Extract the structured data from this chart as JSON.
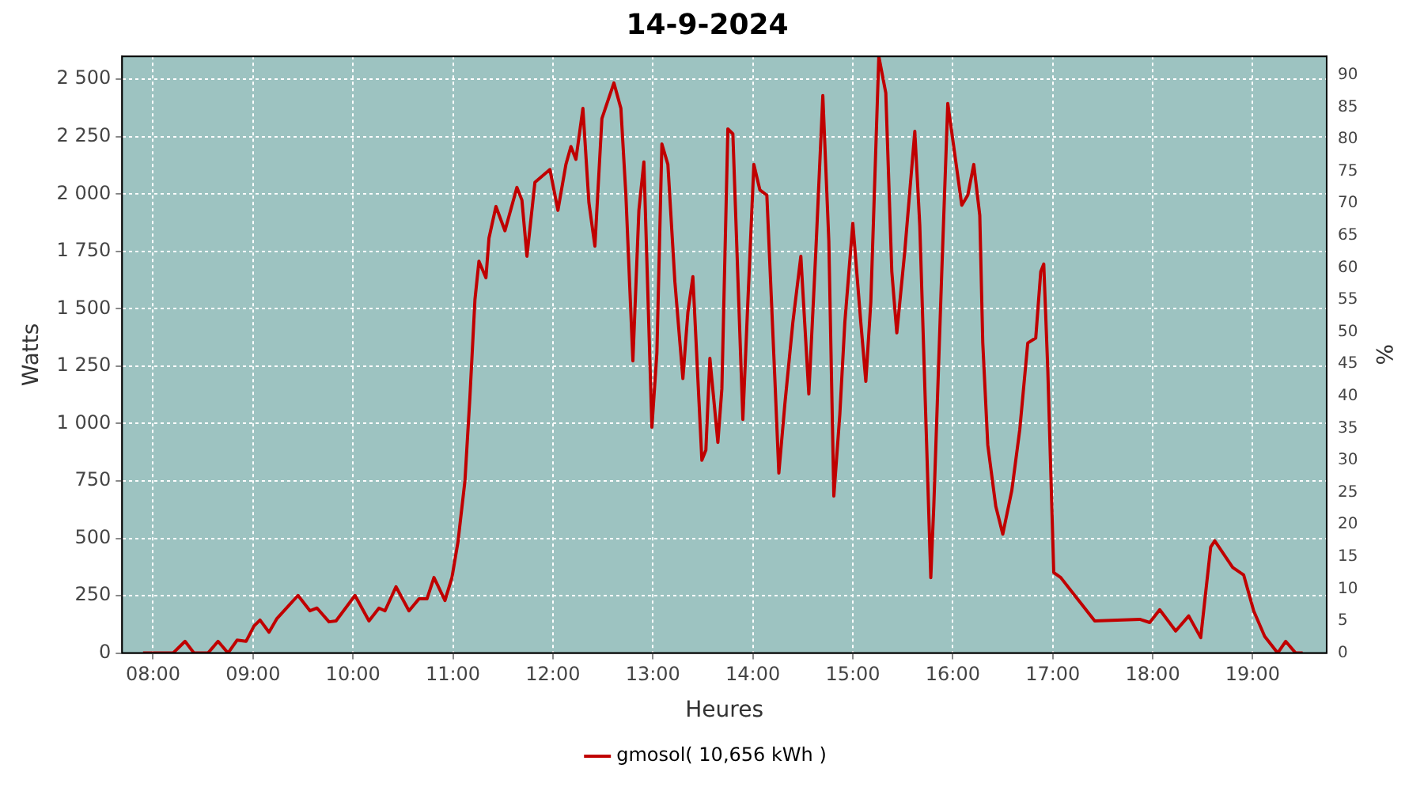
{
  "chart_data": {
    "type": "line",
    "title": "14-9-2024",
    "xlabel": "Heures",
    "ylabel": "Watts",
    "y2label": "%",
    "xlim": [
      7.69,
      19.74
    ],
    "xticks": [
      {
        "value": 8,
        "label": "08:00"
      },
      {
        "value": 9,
        "label": "09:00"
      },
      {
        "value": 10,
        "label": "10:00"
      },
      {
        "value": 11,
        "label": "11:00"
      },
      {
        "value": 12,
        "label": "12:00"
      },
      {
        "value": 13,
        "label": "13:00"
      },
      {
        "value": 14,
        "label": "14:00"
      },
      {
        "value": 15,
        "label": "15:00"
      },
      {
        "value": 16,
        "label": "16:00"
      },
      {
        "value": 17,
        "label": "17:00"
      },
      {
        "value": 18,
        "label": "18:00"
      },
      {
        "value": 19,
        "label": "19:00"
      }
    ],
    "ylim": [
      0,
      2600
    ],
    "yticks": [
      0,
      250,
      500,
      750,
      {
        "value": 1000,
        "label": "1 000"
      },
      {
        "value": 1250,
        "label": "1 250"
      },
      {
        "value": 1500,
        "label": "1 500"
      },
      {
        "value": 1750,
        "label": "1 750"
      },
      {
        "value": 2000,
        "label": "2 000"
      },
      {
        "value": 2250,
        "label": "2 250"
      },
      {
        "value": 2500,
        "label": "2 500"
      }
    ],
    "y2lim": [
      0,
      92.9
    ],
    "y2ticks": [
      0,
      5,
      10,
      15,
      20,
      25,
      30,
      35,
      40,
      45,
      50,
      55,
      60,
      65,
      70,
      75,
      80,
      85,
      90
    ],
    "grid": true,
    "legend": "bottom",
    "marker": "none",
    "line_style": "solid",
    "series": [
      {
        "name": "gmosol( 10,656 kWh )",
        "color": "#c00000",
        "x": [
          7.9,
          8.2,
          8.32,
          8.41,
          8.55,
          8.65,
          8.75,
          8.84,
          8.93,
          9.01,
          9.07,
          9.16,
          9.24,
          9.45,
          9.57,
          9.64,
          9.76,
          9.83,
          10.02,
          10.16,
          10.26,
          10.32,
          10.43,
          10.56,
          10.66,
          10.74,
          10.81,
          10.92,
          10.99,
          11.05,
          11.12,
          11.17,
          11.22,
          11.26,
          11.33,
          11.36,
          11.43,
          11.52,
          11.64,
          11.69,
          11.74,
          11.82,
          11.97,
          12.05,
          12.13,
          12.18,
          12.23,
          12.3,
          12.36,
          12.42,
          12.49,
          12.61,
          12.68,
          12.73,
          12.8,
          12.86,
          12.91,
          12.99,
          13.04,
          13.09,
          13.15,
          13.22,
          13.3,
          13.35,
          13.4,
          13.49,
          13.53,
          13.57,
          13.65,
          13.69,
          13.75,
          13.8,
          13.9,
          13.95,
          14.01,
          14.07,
          14.14,
          14.22,
          14.26,
          14.32,
          14.4,
          14.48,
          14.56,
          14.63,
          14.7,
          14.76,
          14.81,
          14.87,
          14.92,
          15.0,
          15.08,
          15.13,
          15.18,
          15.26,
          15.33,
          15.39,
          15.44,
          15.52,
          15.62,
          15.67,
          15.78,
          15.81,
          15.89,
          15.95,
          16.02,
          16.09,
          16.15,
          16.21,
          16.27,
          16.3,
          16.35,
          16.43,
          16.5,
          16.59,
          16.67,
          16.75,
          16.83,
          16.88,
          16.91,
          16.95,
          17.01,
          17.08,
          17.24,
          17.42,
          17.87,
          17.97,
          18.07,
          18.23,
          18.36,
          18.48,
          18.58,
          18.62,
          18.8,
          18.91,
          19.01,
          19.12,
          19.25,
          19.33,
          19.43,
          19.5
        ],
        "values": [
          0,
          0,
          51,
          0,
          0,
          51,
          0,
          56,
          51,
          118,
          144,
          91,
          151,
          251,
          184,
          196,
          136,
          140,
          251,
          140,
          196,
          184,
          289,
          184,
          236,
          236,
          329,
          229,
          329,
          484,
          751,
          1118,
          1540,
          1707,
          1635,
          1807,
          1946,
          1840,
          2029,
          1973,
          1729,
          2051,
          2107,
          1929,
          2129,
          2207,
          2151,
          2373,
          1962,
          1773,
          2329,
          2484,
          2373,
          1995,
          1273,
          1929,
          2140,
          984,
          1307,
          2218,
          2129,
          1618,
          1196,
          1484,
          1640,
          840,
          884,
          1284,
          918,
          1151,
          2284,
          2262,
          1018,
          1529,
          2129,
          2018,
          1995,
          1196,
          784,
          1084,
          1440,
          1729,
          1129,
          1751,
          2429,
          1795,
          684,
          1040,
          1440,
          1873,
          1440,
          1184,
          1529,
          2600,
          2440,
          1662,
          1395,
          1751,
          2273,
          1862,
          329,
          640,
          1662,
          2395,
          2173,
          1951,
          1995,
          2129,
          1907,
          1351,
          907,
          640,
          518,
          707,
          973,
          1351,
          1373,
          1662,
          1695,
          1240,
          351,
          329,
          240,
          140,
          147,
          133,
          189,
          96,
          162,
          67,
          462,
          489,
          373,
          340,
          184,
          73,
          0,
          51,
          0,
          0
        ]
      }
    ]
  }
}
